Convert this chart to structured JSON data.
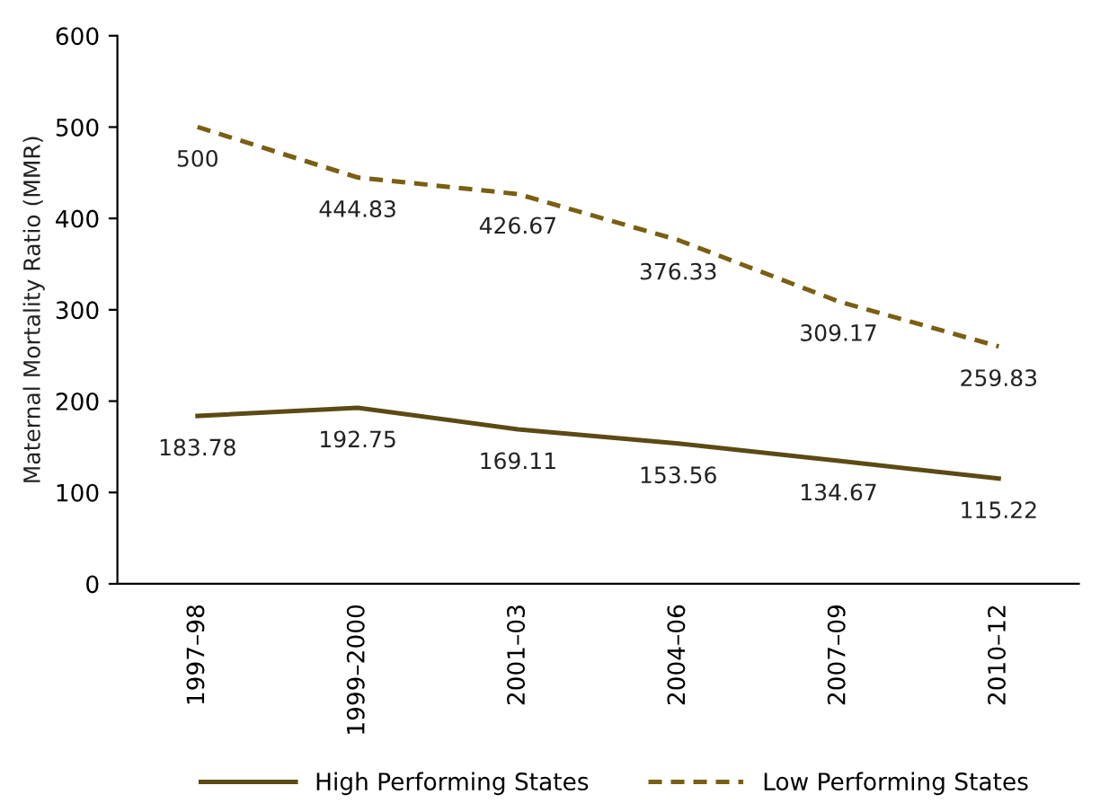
{
  "chart_data": {
    "type": "line",
    "ylabel": "Maternal Mortality Ratio (MMR)",
    "categories": [
      "1997–98",
      "1999–2000",
      "2001–03",
      "2004–06",
      "2007–09",
      "2010–12"
    ],
    "series": [
      {
        "name": "High Performing States",
        "color": "#5c4a14",
        "line_style": "solid",
        "values": [
          183.78,
          192.75,
          169.11,
          153.56,
          134.67,
          115.22
        ]
      },
      {
        "name": "Low Performing States",
        "color": "#7a5f12",
        "line_style": "dashed",
        "values": [
          500,
          444.83,
          426.67,
          376.33,
          309.17,
          259.83
        ]
      }
    ],
    "ylim": [
      0,
      600
    ],
    "yticks": [
      0,
      100,
      200,
      300,
      400,
      500,
      600
    ],
    "grid": false,
    "legend": "bottom",
    "data_labels": true,
    "marker": "none"
  }
}
